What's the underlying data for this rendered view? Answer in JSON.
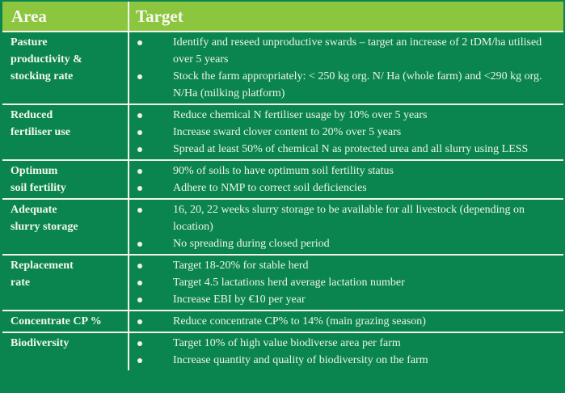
{
  "table": {
    "header": {
      "area": "Area",
      "target": "Target"
    },
    "rows": [
      {
        "area": "Pasture productivity & stocking rate",
        "area_lines": [
          "Pasture",
          "productivity &",
          "stocking rate"
        ],
        "targets": [
          "Identify and reseed unproductive swards – target an increase of 2 tDM/ha utilised over 5 years",
          "Stock the farm appropriately: < 250 kg org. N/ Ha (whole farm) and <290 kg org. N/Ha (milking platform)"
        ]
      },
      {
        "area": "Reduced fertiliser use",
        "area_lines": [
          "Reduced",
          "fertiliser use"
        ],
        "targets": [
          "Reduce chemical N fertiliser usage by 10% over 5 years",
          "Increase sward clover content to 20% over 5 years",
          "Spread at least 50% of chemical N as protected urea and all slurry using LESS"
        ]
      },
      {
        "area": "Optimum soil fertility",
        "area_lines": [
          "Optimum",
          "soil fertility"
        ],
        "targets": [
          "90% of soils to have optimum soil fertility status",
          "Adhere to NMP to correct soil deficiencies"
        ]
      },
      {
        "area": "Adequate slurry storage",
        "area_lines": [
          "Adequate",
          "slurry storage"
        ],
        "targets": [
          "16, 20, 22 weeks slurry storage to be available for all livestock (depending on location)",
          "No spreading during closed period"
        ]
      },
      {
        "area": "Replacement rate",
        "area_lines": [
          "Replacement",
          "rate"
        ],
        "targets": [
          "Target 18-20% for stable herd",
          "Target 4.5 lactations herd average lactation number",
          "Increase EBI by €10 per year"
        ]
      },
      {
        "area": "Concentrate CP %",
        "area_lines": [
          "Concentrate CP %"
        ],
        "targets": [
          "Reduce concentrate CP% to 14% (main grazing season)"
        ]
      },
      {
        "area": "Biodiversity",
        "area_lines": [
          "Biodiversity"
        ],
        "targets": [
          "Target 10% of high value biodiverse area per farm",
          "Increase quantity and quality of biodiversity on the farm"
        ]
      }
    ],
    "bullet_glyph": "•",
    "colors": {
      "header_bg": "#8CC63F",
      "body_bg": "#0B8550",
      "separator": "#F2F6EC",
      "text": "#EDF4E8"
    }
  }
}
